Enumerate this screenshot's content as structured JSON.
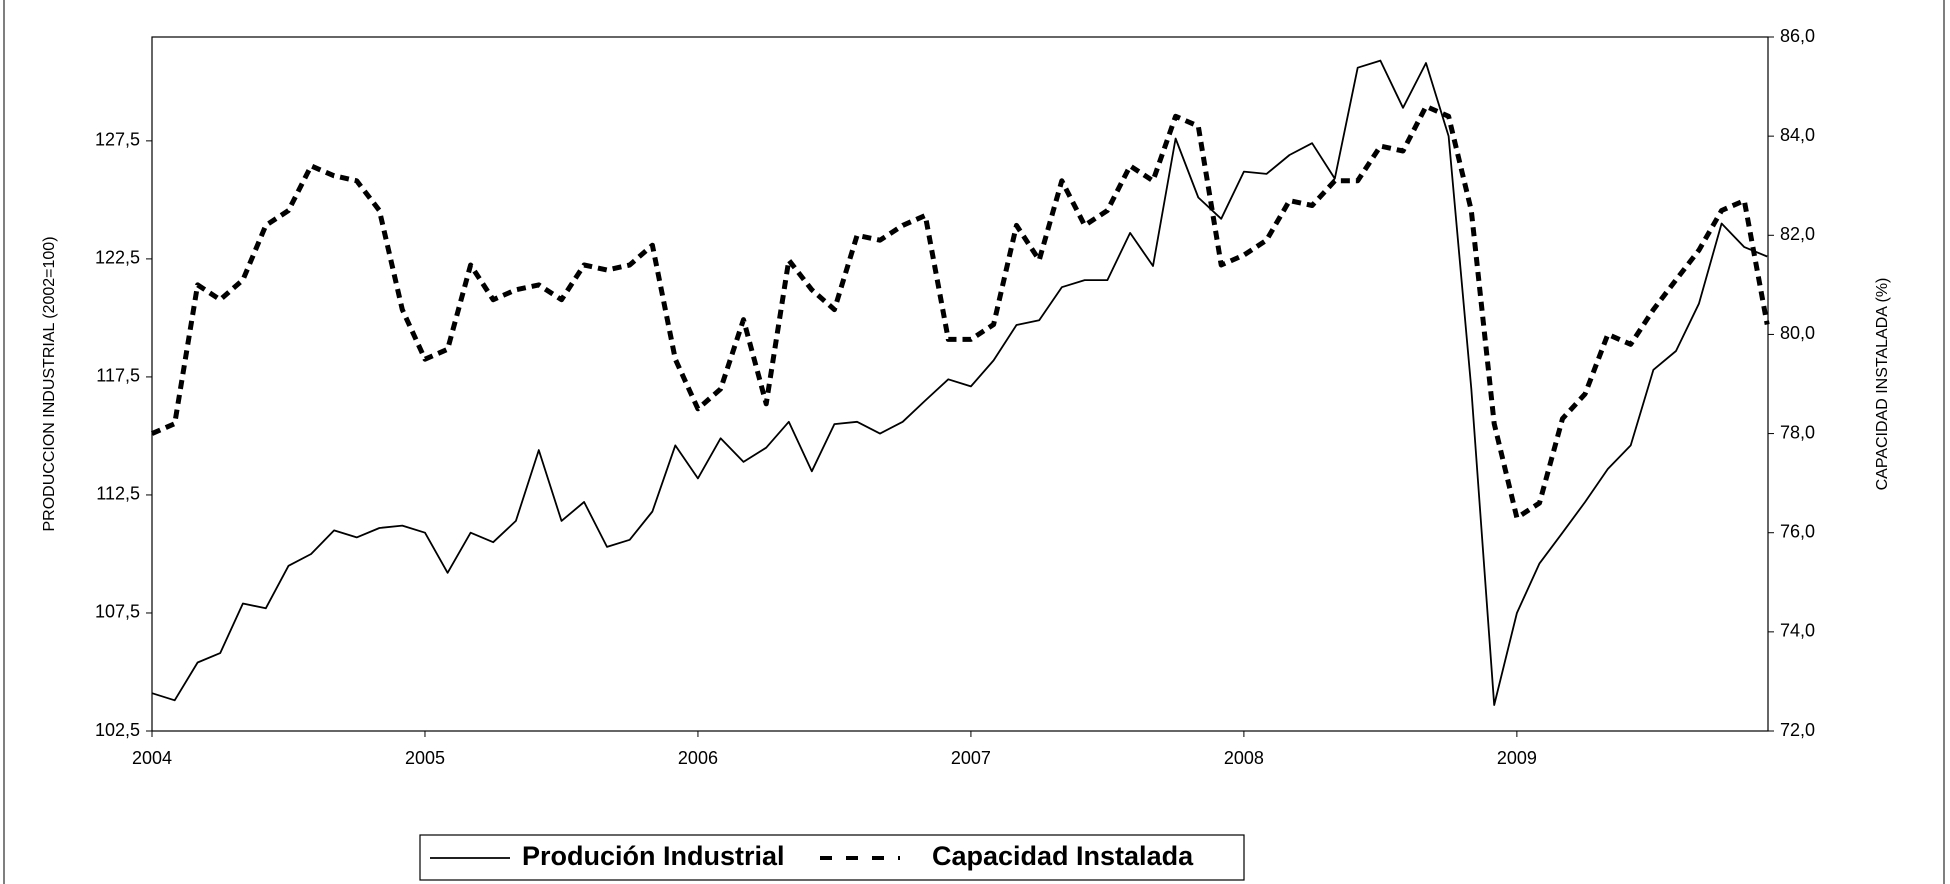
{
  "chart_data": {
    "type": "line",
    "y_label": "PRODUCCION INDUSTRIAL (2002=100)",
    "y2_label": "CAPACIDAD INSTALADA (%)",
    "x": [
      2004,
      2004.083,
      2004.167,
      2004.25,
      2004.333,
      2004.417,
      2004.5,
      2004.583,
      2004.667,
      2004.75,
      2004.833,
      2004.917,
      2005,
      2005.083,
      2005.167,
      2005.25,
      2005.333,
      2005.417,
      2005.5,
      2005.583,
      2005.667,
      2005.75,
      2005.833,
      2005.917,
      2006,
      2006.083,
      2006.167,
      2006.25,
      2006.333,
      2006.417,
      2006.5,
      2006.583,
      2006.667,
      2006.75,
      2006.833,
      2006.917,
      2007,
      2007.083,
      2007.167,
      2007.25,
      2007.333,
      2007.417,
      2007.5,
      2007.583,
      2007.667,
      2007.75,
      2007.833,
      2007.917,
      2008,
      2008.083,
      2008.167,
      2008.25,
      2008.333,
      2008.417,
      2008.5,
      2008.583,
      2008.667,
      2008.75,
      2008.833,
      2008.917,
      2009,
      2009.083,
      2009.167,
      2009.25,
      2009.333,
      2009.417,
      2009.5,
      2009.583,
      2009.667,
      2009.75,
      2009.833,
      2009.917
    ],
    "series": [
      {
        "name": "Produción Industrial",
        "color": "#000000",
        "style": "solid",
        "values": [
          104.1,
          103.8,
          105.4,
          105.8,
          107.9,
          107.7,
          109.5,
          110.0,
          111.0,
          110.7,
          111.1,
          111.2,
          110.9,
          109.2,
          110.9,
          110.5,
          111.4,
          114.4,
          111.4,
          112.2,
          110.3,
          110.6,
          111.8,
          114.6,
          113.2,
          114.9,
          113.9,
          114.5,
          115.6,
          113.5,
          115.5,
          115.6,
          115.1,
          115.6,
          116.5,
          117.4,
          117.1,
          118.2,
          119.7,
          119.9,
          121.3,
          121.6,
          121.6,
          123.6,
          122.2,
          127.6,
          125.1,
          124.2,
          126.2,
          126.1,
          126.9,
          127.4,
          125.9,
          130.6,
          130.9,
          128.9,
          130.8,
          127.7,
          117.0,
          103.6,
          107.5,
          109.6,
          110.9,
          112.2,
          113.6,
          114.6,
          117.8,
          118.6,
          120.6,
          124.0,
          123.0,
          122.6
        ]
      },
      {
        "name": "Capacidad Instalada",
        "color": "#000000",
        "style": "dashed",
        "axis": "y2",
        "values": [
          78.0,
          78.2,
          81.0,
          80.7,
          81.1,
          82.2,
          82.5,
          83.4,
          83.2,
          83.1,
          82.5,
          80.5,
          79.5,
          79.7,
          81.4,
          80.7,
          80.9,
          81.0,
          80.7,
          81.4,
          81.3,
          81.4,
          81.8,
          79.5,
          78.5,
          78.9,
          80.3,
          78.6,
          81.5,
          80.9,
          80.5,
          82.0,
          81.9,
          82.2,
          82.4,
          79.9,
          79.9,
          80.2,
          82.2,
          81.5,
          83.1,
          82.2,
          82.5,
          83.4,
          83.1,
          84.4,
          84.2,
          81.4,
          81.6,
          81.9,
          82.7,
          82.6,
          83.1,
          83.1,
          83.8,
          83.7,
          84.6,
          84.4,
          82.5,
          78.2,
          76.3,
          76.6,
          78.3,
          78.8,
          80.0,
          79.8,
          80.5,
          81.1,
          81.7,
          82.5,
          82.7,
          80.2
        ]
      }
    ],
    "xlim": [
      2004,
      2009.92
    ],
    "xticks": [
      2004,
      2005,
      2006,
      2007,
      2008,
      2009
    ],
    "ylim": [
      102.5,
      131.9
    ],
    "yticks": [
      {
        "value": 102.5,
        "label": "102,5"
      },
      {
        "value": 107.5,
        "label": "107,5"
      },
      {
        "value": 112.5,
        "label": "112,5"
      },
      {
        "value": 117.5,
        "label": "117,5"
      },
      {
        "value": 122.5,
        "label": "122,5"
      },
      {
        "value": 127.5,
        "label": "127,5"
      }
    ],
    "y2lim": [
      72,
      86
    ],
    "y2ticks": [
      {
        "value": 72,
        "label": "72,0"
      },
      {
        "value": 74,
        "label": "74,0"
      },
      {
        "value": 76,
        "label": "76,0"
      },
      {
        "value": 78,
        "label": "78,0"
      },
      {
        "value": 80,
        "label": "80,0"
      },
      {
        "value": 82,
        "label": "82,0"
      },
      {
        "value": 84,
        "label": "84,0"
      },
      {
        "value": 86,
        "label": "86,0"
      }
    ],
    "grid": false,
    "legend": "bottom"
  }
}
